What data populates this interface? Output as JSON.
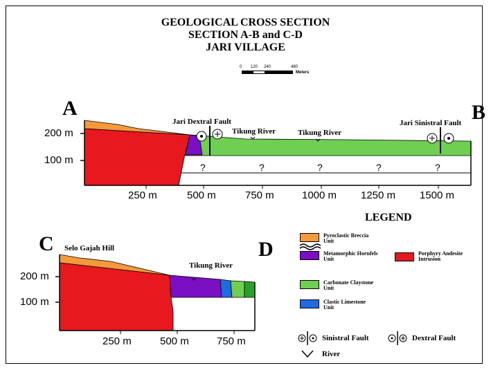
{
  "title": {
    "line1": "GEOLOGICAL CROSS SECTION",
    "line2": "SECTION A-B and C-D",
    "line3": "JARI VILLAGE"
  },
  "scale_bar": {
    "ticks": [
      "0",
      "120",
      "240",
      "480"
    ],
    "unit": "Meters"
  },
  "section_ab": {
    "start_label": "A",
    "end_label": "B",
    "y_ticks": [
      "200 m",
      "100 m"
    ],
    "x_ticks": [
      "250 m",
      "500 m",
      "750 m",
      "1000 m",
      "1250 m",
      "1500 m"
    ],
    "annotations": {
      "dextral_fault": "Jari Dextral Fault",
      "river1": "Tikung River",
      "river2": "Tikung River",
      "sinistral_fault": "Jari Sinistral Fault"
    },
    "unknown_marker": "?"
  },
  "section_cd": {
    "start_label": "C",
    "end_label": "D",
    "hill": "Selo Gajah Hill",
    "river": "Tikung River",
    "y_ticks": [
      "200 m",
      "100 m"
    ],
    "x_ticks": [
      "250 m",
      "500 m",
      "750 m"
    ]
  },
  "legend": {
    "title": "LEGEND",
    "units": [
      {
        "name_line1": "Pyroclastic Breccia",
        "name_line2": "Unit",
        "color": "#f59a3c"
      },
      {
        "name_line1": "Metamorphic Hornfels",
        "name_line2": "Unit",
        "color": "#7b0fc4"
      },
      {
        "name_line1": "Porphyry Andesite",
        "name_line2": "Intrusion",
        "color": "#e8191e"
      },
      {
        "name_line1": "Carbonate Claystone",
        "name_line2": "Unit",
        "color": "#6fcf52"
      },
      {
        "name_line1": "Clastic Limestone",
        "name_line2": "Unit",
        "color": "#1f6be0"
      }
    ],
    "sinistral_fault": "Sinistral Fault",
    "dextral_fault": "Dextral Fault",
    "river": "River"
  },
  "colors": {
    "pyroclastic": "#f59a3c",
    "hornfels": "#7b0fc4",
    "andesite": "#e8191e",
    "carbonate_claystone": "#6fcf52",
    "clastic_limestone": "#1f6be0",
    "dark_green": "#2ca02c"
  }
}
